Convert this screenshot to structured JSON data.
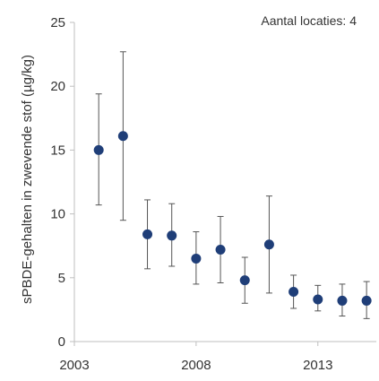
{
  "chart_data": {
    "type": "scatter",
    "title": "",
    "xlabel": "",
    "ylabel": "sPBDE-gehalten in zwevende stof (µg/kg)",
    "annotation": "Aantal locaties: 4",
    "xlim": [
      2003,
      2015.4
    ],
    "ylim": [
      0,
      25
    ],
    "xticks": [
      2003,
      2008,
      2013
    ],
    "yticks": [
      0,
      5,
      10,
      15,
      20,
      25
    ],
    "grid": false,
    "legend": "none",
    "marker_color": "#1f3e78",
    "errorbar_color": "#555555",
    "points": [
      {
        "x": 2004,
        "y": 15.0,
        "low": 10.7,
        "high": 19.4
      },
      {
        "x": 2005,
        "y": 16.1,
        "low": 9.5,
        "high": 22.7
      },
      {
        "x": 2006,
        "y": 8.4,
        "low": 5.7,
        "high": 11.1
      },
      {
        "x": 2007,
        "y": 8.3,
        "low": 5.9,
        "high": 10.8
      },
      {
        "x": 2008,
        "y": 6.5,
        "low": 4.5,
        "high": 8.6
      },
      {
        "x": 2009,
        "y": 7.2,
        "low": 4.6,
        "high": 9.8
      },
      {
        "x": 2010,
        "y": 4.8,
        "low": 3.0,
        "high": 6.6
      },
      {
        "x": 2011,
        "y": 7.6,
        "low": 3.8,
        "high": 11.4
      },
      {
        "x": 2012,
        "y": 3.9,
        "low": 2.6,
        "high": 5.2
      },
      {
        "x": 2013,
        "y": 3.3,
        "low": 2.4,
        "high": 4.4
      },
      {
        "x": 2014,
        "y": 3.2,
        "low": 2.0,
        "high": 4.5
      },
      {
        "x": 2015,
        "y": 3.2,
        "low": 1.8,
        "high": 4.7
      }
    ]
  }
}
